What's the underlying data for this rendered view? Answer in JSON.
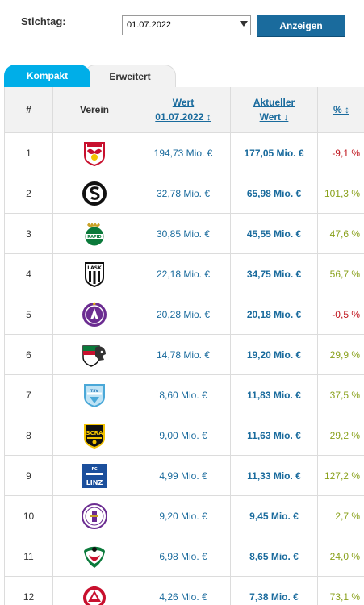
{
  "controls": {
    "stichtag_label": "Stichtag:",
    "date_value": "01.07.2022",
    "button_label": "Anzeigen"
  },
  "tabs": [
    {
      "label": "Kompakt",
      "active": true
    },
    {
      "label": "Erweitert",
      "active": false
    }
  ],
  "table": {
    "headers": {
      "rank": "#",
      "club": "Verein",
      "wert_line1": "Wert",
      "wert_line2": "01.07.2022 ↕",
      "akt_line1": "Aktueller",
      "akt_line2": "Wert ↓",
      "pct": "% ↕"
    },
    "rows": [
      {
        "rank": "1",
        "crest": "salzburg-crest-icon",
        "wert": "194,73 Mio. €",
        "aktuell": "177,05 Mio. €",
        "pct": "-9,1 %",
        "trend": "neg"
      },
      {
        "rank": "2",
        "crest": "sturm-graz-crest-icon",
        "wert": "32,78 Mio. €",
        "aktuell": "65,98 Mio. €",
        "pct": "101,3 %",
        "trend": "pos"
      },
      {
        "rank": "3",
        "crest": "rapid-wien-crest-icon",
        "wert": "30,85 Mio. €",
        "aktuell": "45,55 Mio. €",
        "pct": "47,6 %",
        "trend": "pos"
      },
      {
        "rank": "4",
        "crest": "lask-crest-icon",
        "wert": "22,18 Mio. €",
        "aktuell": "34,75 Mio. €",
        "pct": "56,7 %",
        "trend": "pos"
      },
      {
        "rank": "5",
        "crest": "austria-wien-crest-icon",
        "wert": "20,28 Mio. €",
        "aktuell": "20,18 Mio. €",
        "pct": "-0,5 %",
        "trend": "neg"
      },
      {
        "rank": "6",
        "crest": "wolfsberg-crest-icon",
        "wert": "14,78 Mio. €",
        "aktuell": "19,20 Mio. €",
        "pct": "29,9 %",
        "trend": "pos"
      },
      {
        "rank": "7",
        "crest": "hartberg-crest-icon",
        "wert": "8,60 Mio. €",
        "aktuell": "11,83 Mio. €",
        "pct": "37,5 %",
        "trend": "pos"
      },
      {
        "rank": "8",
        "crest": "altach-crest-icon",
        "wert": "9,00 Mio. €",
        "aktuell": "11,63 Mio. €",
        "pct": "29,2 %",
        "trend": "pos"
      },
      {
        "rank": "9",
        "crest": "blau-weiss-linz-crest-icon",
        "wert": "4,99 Mio. €",
        "aktuell": "11,33 Mio. €",
        "pct": "127,2 %",
        "trend": "pos"
      },
      {
        "rank": "10",
        "crest": "austria-klagenfurt-crest-icon",
        "wert": "9,20 Mio. €",
        "aktuell": "9,45 Mio. €",
        "pct": "2,7 %",
        "trend": "pos"
      },
      {
        "rank": "11",
        "crest": "wsg-tirol-crest-icon",
        "wert": "6,98 Mio. €",
        "aktuell": "8,65 Mio. €",
        "pct": "24,0 %",
        "trend": "pos"
      },
      {
        "rank": "12",
        "crest": "austria-lustenau-crest-icon",
        "wert": "4,26 Mio. €",
        "aktuell": "7,38 Mio. €",
        "pct": "73,1 %",
        "trend": "pos"
      }
    ]
  },
  "colors": {
    "link": "#1a6b9d",
    "tab_active": "#00aee8",
    "positive": "#8aa11c",
    "negative": "#c0161e"
  }
}
